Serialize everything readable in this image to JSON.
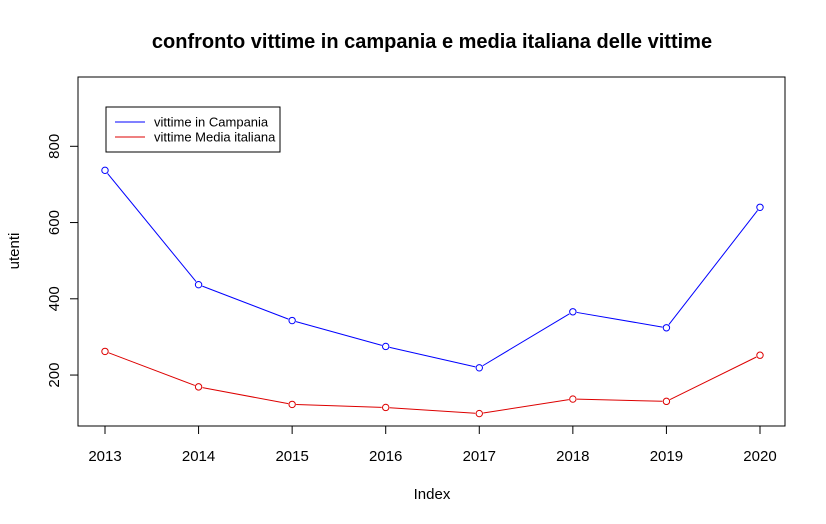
{
  "chart_data": {
    "type": "line",
    "title": "confronto vittime in campania e media italiana delle vittime",
    "xlabel": "Index",
    "ylabel": "utenti",
    "categories": [
      "2013",
      "2014",
      "2015",
      "2016",
      "2017",
      "2018",
      "2019",
      "2020"
    ],
    "x_tick_labels": [
      "2013",
      "2014",
      "2015",
      "2016",
      "2017",
      "2018",
      "2019",
      "2020"
    ],
    "y_ticks": [
      200,
      400,
      600,
      800
    ],
    "ylim": [
      70,
      1000
    ],
    "grid": false,
    "legend_position": "top-left",
    "series": [
      {
        "name": "vittime in Campania",
        "color": "#0000ff",
        "marker": "open-circle",
        "values": [
          737,
          437,
          343,
          275,
          219,
          366,
          324,
          640
        ]
      },
      {
        "name": "vittime Media italiana",
        "color": "#dd0000",
        "marker": "open-circle",
        "values": [
          262,
          169,
          123,
          115,
          99,
          137,
          131,
          252
        ]
      }
    ]
  }
}
